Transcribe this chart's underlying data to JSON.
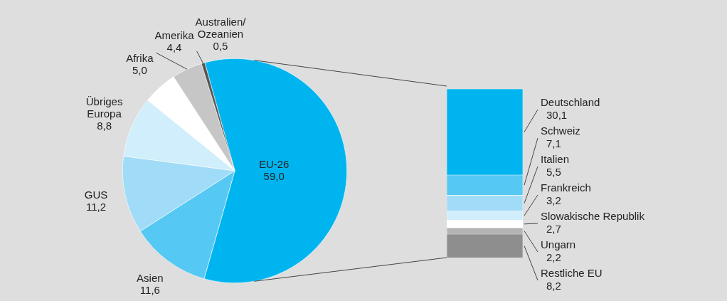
{
  "chart_data": [
    {
      "type": "pie",
      "categories": [
        "EU-26",
        "Asien",
        "GUS",
        "Übriges\nEuropa",
        "Afrika",
        "Amerika",
        "Australien/\nOzeanien"
      ],
      "values": [
        59.0,
        11.6,
        11.2,
        8.8,
        5.0,
        4.4,
        0.5
      ],
      "value_labels": [
        "59,0",
        "11,6",
        "11,2",
        "8,8",
        "5,0",
        "4,4",
        "0,5"
      ],
      "colors": [
        "#00b5ef",
        "#55c8f3",
        "#a0dcf7",
        "#d0eefb",
        "#ffffff",
        "#c6c6c6",
        "#555555"
      ]
    },
    {
      "type": "bar",
      "stacked": true,
      "categories": [
        null
      ],
      "tick_labels": false,
      "series": [
        {
          "name": "Restliche EU",
          "color": "#8e8e8e",
          "values": [
            8.2
          ],
          "value_labels": [
            "8,2"
          ]
        },
        {
          "name": "Ungarn",
          "color": "#b4b4b4",
          "values": [
            2.2
          ],
          "value_labels": [
            "2,2"
          ]
        },
        {
          "name": "Slowakische Republik",
          "color": "#ffffff",
          "values": [
            2.7
          ],
          "value_labels": [
            "2,7"
          ]
        },
        {
          "name": "Frankreich",
          "color": "#d0eefb",
          "values": [
            3.2
          ],
          "value_labels": [
            "3,2"
          ]
        },
        {
          "name": "Italien",
          "color": "#a0dcf7",
          "values": [
            5.5
          ],
          "value_labels": [
            "5,5"
          ]
        },
        {
          "name": "Schweiz",
          "color": "#55c8f3",
          "values": [
            7.1
          ],
          "value_labels": [
            "7,1"
          ]
        },
        {
          "name": "Deutschland",
          "color": "#00b5ef",
          "values": [
            30.1
          ],
          "value_labels": [
            "30,1"
          ]
        }
      ]
    }
  ]
}
